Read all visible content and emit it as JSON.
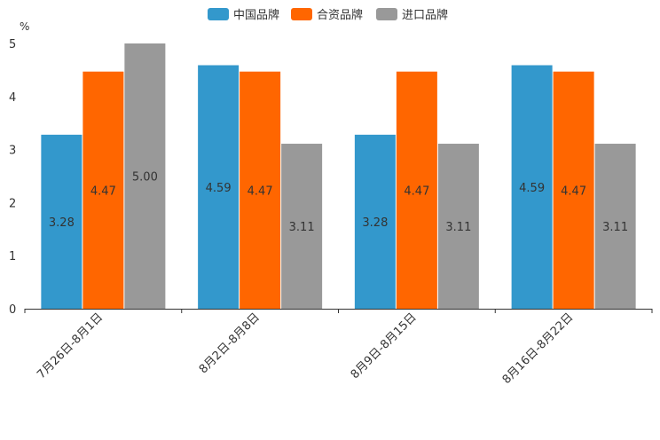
{
  "chart_data": {
    "type": "bar",
    "categories": [
      "7月26日-8月1日",
      "8月2日-8月8日",
      "8月9日-8月15日",
      "8月16日-8月22日"
    ],
    "series": [
      {
        "name": "中国品牌",
        "color": "#3398cc",
        "values": [
          3.28,
          4.59,
          3.28,
          4.59
        ],
        "labels": [
          "3.28",
          "4.59",
          "3.28",
          "4.59"
        ]
      },
      {
        "name": "合资品牌",
        "color": "#ff6600",
        "values": [
          4.47,
          4.47,
          4.47,
          4.47
        ],
        "labels": [
          "4.47",
          "4.47",
          "4.47",
          "4.47"
        ]
      },
      {
        "name": "进口品牌",
        "color": "#999999",
        "values": [
          5.0,
          3.11,
          3.11,
          3.11
        ],
        "labels": [
          "5.00",
          "3.11",
          "3.11",
          "3.11"
        ]
      }
    ],
    "yunit": "%",
    "ylim": [
      0,
      5
    ],
    "yticks": [
      "0",
      "1",
      "2",
      "3",
      "4",
      "5"
    ],
    "legend_position": "top-center",
    "grid": false
  }
}
